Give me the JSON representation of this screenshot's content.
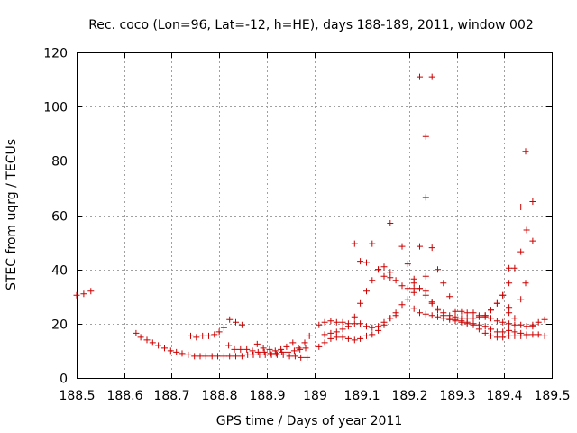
{
  "chart_data": {
    "type": "scatter",
    "title": "Rec. coco (Lon=96, Lat=-12, h=HE), days 188-189, 2011, window 002",
    "xlabel": "GPS time / Days of year 2011",
    "ylabel": "STEC from uqrg / TECUs",
    "xlim": [
      188.5,
      189.5
    ],
    "ylim": [
      0,
      120
    ],
    "xticks": [
      188.5,
      188.6,
      188.7,
      188.8,
      188.9,
      189.0,
      189.1,
      189.2,
      189.3,
      189.4,
      189.5
    ],
    "xtick_labels": [
      "188.5",
      "188.6",
      "188.7",
      "188.8",
      "188.9",
      "189",
      "189.1",
      "189.2",
      "189.3",
      "189.4",
      "189.5"
    ],
    "yticks": [
      0,
      20,
      40,
      60,
      80,
      100,
      120
    ],
    "ytick_labels": [
      "0",
      "20",
      "40",
      "60",
      "80",
      "100",
      "120"
    ],
    "grid": true,
    "marker": "+",
    "series": [
      {
        "name": "STEC",
        "color": "#cc0000",
        "points": [
          [
            188.5,
            30.5
          ],
          [
            188.515,
            31
          ],
          [
            188.53,
            32
          ],
          [
            188.625,
            16.5
          ],
          [
            188.635,
            15
          ],
          [
            188.648,
            14
          ],
          [
            188.66,
            13
          ],
          [
            188.672,
            12
          ],
          [
            188.685,
            11
          ],
          [
            188.698,
            10
          ],
          [
            188.71,
            9.5
          ],
          [
            188.722,
            9
          ],
          [
            188.735,
            8.5
          ],
          [
            188.748,
            8
          ],
          [
            188.76,
            8
          ],
          [
            188.772,
            8
          ],
          [
            188.785,
            8
          ],
          [
            188.797,
            8
          ],
          [
            188.81,
            8
          ],
          [
            188.822,
            8
          ],
          [
            188.835,
            8
          ],
          [
            188.848,
            8
          ],
          [
            188.86,
            8.5
          ],
          [
            188.872,
            8.5
          ],
          [
            188.885,
            8.5
          ],
          [
            188.897,
            8.5
          ],
          [
            188.91,
            8.5
          ],
          [
            188.922,
            8.5
          ],
          [
            188.935,
            8.5
          ],
          [
            188.948,
            8
          ],
          [
            188.96,
            8
          ],
          [
            188.972,
            7.5
          ],
          [
            188.985,
            7.5
          ],
          [
            188.74,
            15.5
          ],
          [
            188.752,
            15
          ],
          [
            188.765,
            15.5
          ],
          [
            188.778,
            15.5
          ],
          [
            188.79,
            16
          ],
          [
            188.8,
            17
          ],
          [
            188.81,
            18.5
          ],
          [
            188.822,
            21.5
          ],
          [
            188.835,
            20.5
          ],
          [
            188.848,
            19.5
          ],
          [
            188.82,
            12
          ],
          [
            188.832,
            10.5
          ],
          [
            188.845,
            10.5
          ],
          [
            188.858,
            10.5
          ],
          [
            188.87,
            10
          ],
          [
            188.882,
            9.5
          ],
          [
            188.895,
            9.5
          ],
          [
            188.908,
            9
          ],
          [
            188.92,
            9
          ],
          [
            188.932,
            9.5
          ],
          [
            188.945,
            9.5
          ],
          [
            188.958,
            10
          ],
          [
            188.97,
            10.5
          ],
          [
            188.982,
            11
          ],
          [
            188.88,
            12.5
          ],
          [
            188.893,
            11
          ],
          [
            188.906,
            10.5
          ],
          [
            188.918,
            10
          ],
          [
            188.93,
            10.5
          ],
          [
            188.942,
            11.5
          ],
          [
            188.955,
            13
          ],
          [
            188.967,
            11
          ],
          [
            188.98,
            13
          ],
          [
            188.99,
            15.5
          ],
          [
            189.01,
            11.5
          ],
          [
            189.022,
            13
          ],
          [
            189.035,
            14.5
          ],
          [
            189.047,
            15
          ],
          [
            189.06,
            15
          ],
          [
            189.072,
            14.5
          ],
          [
            189.085,
            14
          ],
          [
            189.097,
            14.5
          ],
          [
            189.11,
            15.5
          ],
          [
            189.122,
            16
          ],
          [
            189.135,
            17.5
          ],
          [
            189.147,
            19.5
          ],
          [
            189.16,
            22
          ],
          [
            189.172,
            23
          ],
          [
            189.01,
            19.5
          ],
          [
            189.022,
            20.5
          ],
          [
            189.035,
            21
          ],
          [
            189.047,
            20.5
          ],
          [
            189.06,
            20.5
          ],
          [
            189.072,
            20
          ],
          [
            189.085,
            20
          ],
          [
            189.097,
            20
          ],
          [
            189.11,
            19
          ],
          [
            189.122,
            18.5
          ],
          [
            189.135,
            19
          ],
          [
            189.147,
            20.5
          ],
          [
            189.16,
            22
          ],
          [
            189.172,
            24
          ],
          [
            189.185,
            27
          ],
          [
            189.197,
            29
          ],
          [
            189.21,
            33
          ],
          [
            189.222,
            33
          ],
          [
            189.235,
            32
          ],
          [
            189.248,
            28
          ],
          [
            189.26,
            25
          ],
          [
            189.272,
            23
          ],
          [
            189.285,
            22
          ],
          [
            189.297,
            21.5
          ],
          [
            189.31,
            21
          ],
          [
            189.322,
            20.5
          ],
          [
            189.335,
            20
          ],
          [
            189.347,
            19.5
          ],
          [
            189.36,
            19
          ],
          [
            189.372,
            18
          ],
          [
            189.385,
            17
          ],
          [
            189.397,
            17
          ],
          [
            189.41,
            17.5
          ],
          [
            189.422,
            17
          ],
          [
            189.435,
            16.5
          ],
          [
            189.447,
            16
          ],
          [
            189.46,
            16
          ],
          [
            189.472,
            16
          ],
          [
            189.485,
            15.5
          ],
          [
            189.022,
            16
          ],
          [
            189.035,
            16.5
          ],
          [
            189.047,
            17
          ],
          [
            189.06,
            18
          ],
          [
            189.072,
            19
          ],
          [
            189.085,
            22.5
          ],
          [
            189.097,
            27.5
          ],
          [
            189.11,
            32
          ],
          [
            189.122,
            36
          ],
          [
            189.135,
            40
          ],
          [
            189.147,
            41
          ],
          [
            189.16,
            39
          ],
          [
            189.172,
            36
          ],
          [
            189.185,
            34
          ],
          [
            189.197,
            33
          ],
          [
            189.21,
            31.5
          ],
          [
            189.085,
            49.5
          ],
          [
            189.097,
            43
          ],
          [
            189.11,
            42.5
          ],
          [
            189.122,
            49.5
          ],
          [
            189.135,
            40
          ],
          [
            189.147,
            37.5
          ],
          [
            189.16,
            37
          ],
          [
            189.16,
            57
          ],
          [
            189.185,
            48.5
          ],
          [
            189.197,
            42
          ],
          [
            189.21,
            36.5
          ],
          [
            189.222,
            48.5
          ],
          [
            189.222,
            111
          ],
          [
            189.235,
            89
          ],
          [
            189.235,
            66.5
          ],
          [
            189.235,
            37.5
          ],
          [
            189.248,
            111
          ],
          [
            189.248,
            48
          ],
          [
            189.26,
            40
          ],
          [
            189.272,
            35
          ],
          [
            189.285,
            30
          ],
          [
            189.297,
            24.5
          ],
          [
            189.31,
            24.5
          ],
          [
            189.322,
            24
          ],
          [
            189.335,
            24
          ],
          [
            189.347,
            23
          ],
          [
            189.36,
            22.5
          ],
          [
            189.372,
            22
          ],
          [
            189.385,
            21
          ],
          [
            189.397,
            20.5
          ],
          [
            189.41,
            20
          ],
          [
            189.422,
            19.5
          ],
          [
            189.435,
            19.5
          ],
          [
            189.447,
            19
          ],
          [
            189.46,
            19.5
          ],
          [
            189.472,
            20.5
          ],
          [
            189.485,
            21.5
          ],
          [
            189.21,
            25.5
          ],
          [
            189.222,
            24
          ],
          [
            189.235,
            23.5
          ],
          [
            189.248,
            23
          ],
          [
            189.26,
            22.5
          ],
          [
            189.272,
            22
          ],
          [
            189.285,
            21.5
          ],
          [
            189.297,
            21
          ],
          [
            189.31,
            20.5
          ],
          [
            189.322,
            20
          ],
          [
            189.335,
            19.5
          ],
          [
            189.347,
            18
          ],
          [
            189.36,
            16.5
          ],
          [
            189.372,
            15.5
          ],
          [
            189.385,
            15
          ],
          [
            189.397,
            15
          ],
          [
            189.41,
            15.5
          ],
          [
            189.422,
            15.5
          ],
          [
            189.435,
            15.5
          ],
          [
            189.447,
            15.5
          ],
          [
            189.21,
            35
          ],
          [
            189.222,
            33
          ],
          [
            189.235,
            30.5
          ],
          [
            189.248,
            27.5
          ],
          [
            189.26,
            25.5
          ],
          [
            189.272,
            24
          ],
          [
            189.285,
            23
          ],
          [
            189.297,
            22.5
          ],
          [
            189.31,
            22
          ],
          [
            189.322,
            22
          ],
          [
            189.335,
            22
          ],
          [
            189.347,
            22.5
          ],
          [
            189.36,
            23
          ],
          [
            189.372,
            25
          ],
          [
            189.385,
            27.5
          ],
          [
            189.397,
            30.5
          ],
          [
            189.41,
            35
          ],
          [
            189.422,
            40.5
          ],
          [
            189.435,
            46.5
          ],
          [
            189.447,
            54.5
          ],
          [
            189.46,
            65
          ],
          [
            189.41,
            40.5
          ],
          [
            189.435,
            63
          ],
          [
            189.445,
            83.5
          ],
          [
            189.46,
            50.5
          ],
          [
            189.445,
            35
          ],
          [
            189.435,
            29
          ],
          [
            189.41,
            26
          ],
          [
            189.397,
            30.5
          ],
          [
            189.385,
            27.5
          ],
          [
            189.372,
            25
          ],
          [
            189.36,
            23
          ],
          [
            189.41,
            24
          ],
          [
            189.422,
            22
          ],
          [
            189.46,
            19
          ]
        ]
      }
    ]
  }
}
